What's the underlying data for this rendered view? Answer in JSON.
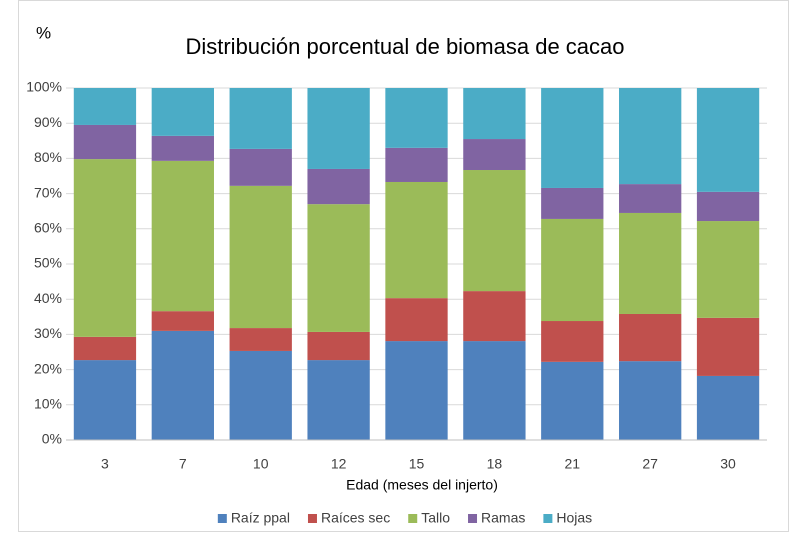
{
  "chart_data": {
    "type": "stacked_bar",
    "title": "Distribución porcentual de biomasa de cacao",
    "y_label": "%",
    "x_label": "Edad (meses del injerto)",
    "categories": [
      "3",
      "7",
      "10",
      "12",
      "15",
      "18",
      "21",
      "27",
      "30"
    ],
    "series": [
      {
        "name": "Raíz ppal",
        "color": "#4f81bd",
        "values": [
          22.7,
          31.0,
          25.3,
          22.7,
          28.1,
          28.1,
          22.2,
          22.4,
          18.2
        ]
      },
      {
        "name": "Raíces sec",
        "color": "#c0504d",
        "values": [
          6.6,
          5.6,
          6.5,
          8.0,
          12.2,
          14.2,
          11.6,
          13.4,
          16.5
        ]
      },
      {
        "name": "Tallo",
        "color": "#9bbb59",
        "values": [
          50.5,
          42.7,
          40.4,
          36.3,
          33.0,
          34.4,
          29.0,
          28.7,
          27.5
        ]
      },
      {
        "name": "Ramas",
        "color": "#8064a2",
        "values": [
          9.7,
          7.1,
          10.5,
          10.0,
          9.7,
          8.8,
          8.8,
          8.2,
          8.3
        ]
      },
      {
        "name": "Hojas",
        "color": "#4bacc6",
        "values": [
          10.5,
          13.6,
          17.3,
          23.0,
          17.0,
          14.5,
          28.4,
          27.3,
          29.5
        ]
      }
    ],
    "ylim": [
      0,
      100
    ],
    "yticks": [
      {
        "value": 0,
        "label": "0%"
      },
      {
        "value": 10,
        "label": "10%"
      },
      {
        "value": 20,
        "label": "20%"
      },
      {
        "value": 30,
        "label": "30%"
      },
      {
        "value": 40,
        "label": "40%"
      },
      {
        "value": 50,
        "label": "50%"
      },
      {
        "value": 60,
        "label": "60%"
      },
      {
        "value": 70,
        "label": "70%"
      },
      {
        "value": 80,
        "label": "80%"
      },
      {
        "value": 90,
        "label": "90%"
      },
      {
        "value": 100,
        "label": "100%"
      }
    ],
    "grid": true,
    "legend": "bottom"
  }
}
